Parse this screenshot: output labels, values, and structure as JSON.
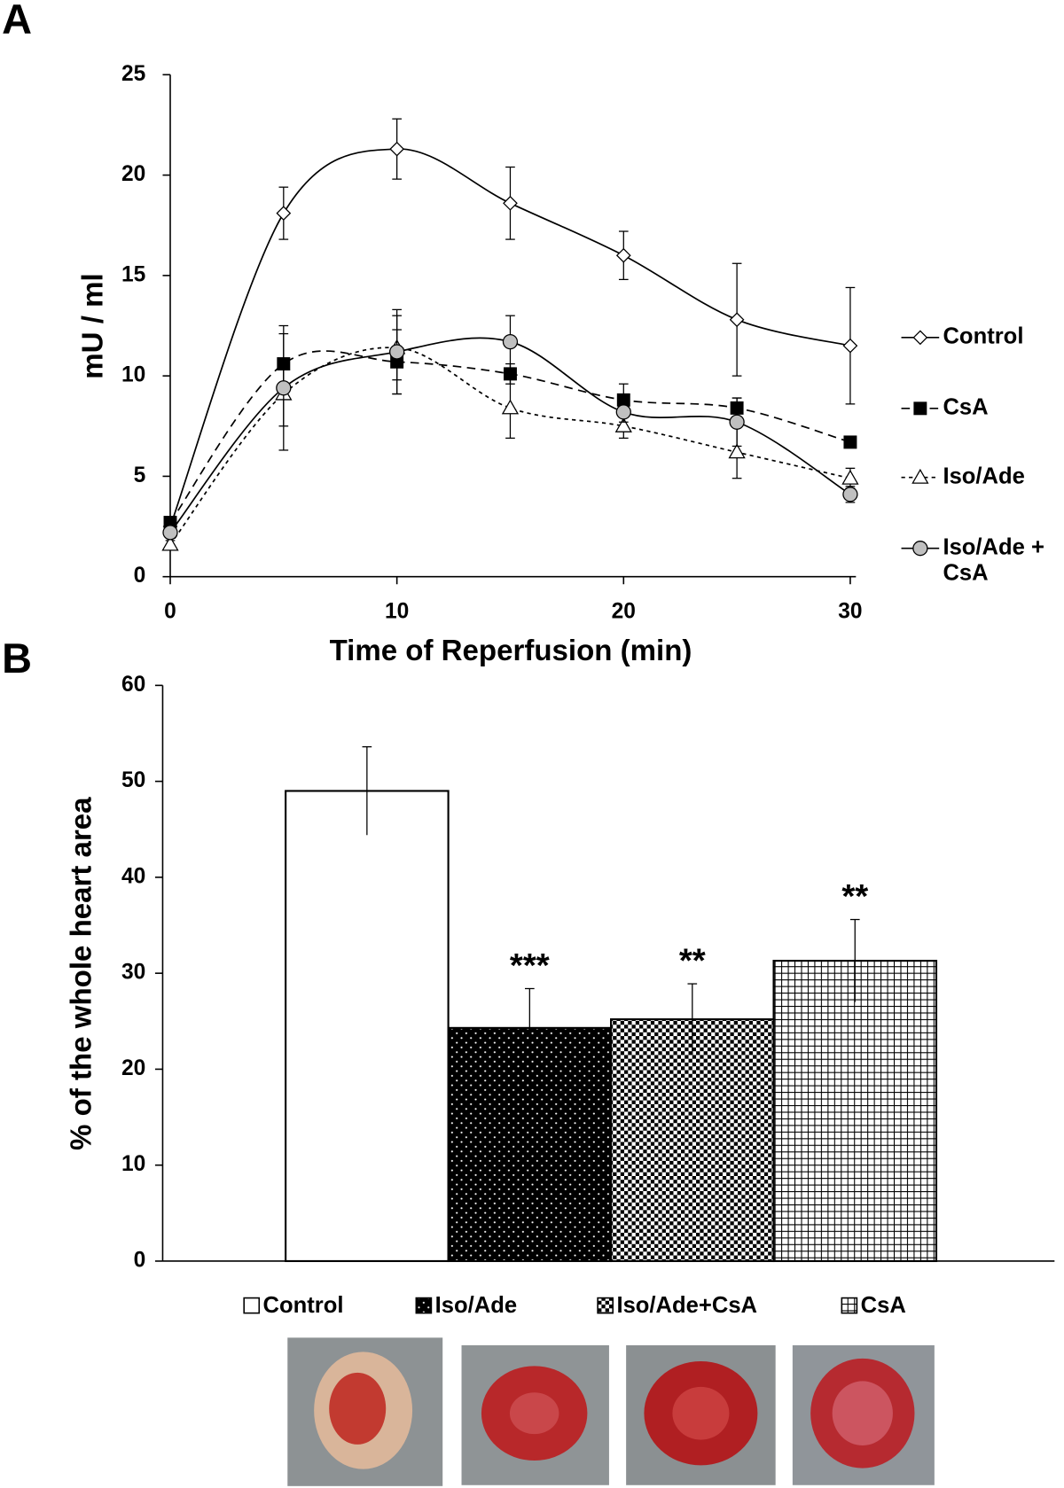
{
  "chart_data": [
    {
      "type": "line",
      "panel_label": "A",
      "x_label": "Time of Reperfusion (min)",
      "y_label": "mU / ml",
      "x": [
        0,
        5,
        10,
        15,
        20,
        25,
        30
      ],
      "xlim": [
        0,
        30
      ],
      "xticks": [
        0,
        10,
        20,
        30
      ],
      "ylim": [
        0,
        25
      ],
      "yticks": [
        0,
        5,
        10,
        15,
        20,
        25
      ],
      "series": [
        {
          "name": "Control",
          "color": "#000000",
          "marker": "diamond",
          "marker_fill": "#ffffff",
          "dash": "none",
          "values": [
            2.5,
            18.1,
            21.3,
            18.6,
            16.0,
            12.8,
            11.5
          ],
          "errors": [
            0.3,
            1.3,
            1.5,
            1.8,
            1.2,
            2.8,
            2.9
          ]
        },
        {
          "name": "CsA",
          "color": "#000000",
          "marker": "square",
          "marker_fill": "#000000",
          "dash": "9 6",
          "values": [
            2.7,
            10.6,
            10.7,
            10.1,
            8.8,
            8.4,
            6.7
          ],
          "errors": [
            0.2,
            1.5,
            1.6,
            0.5,
            0.8,
            0.5,
            0.2
          ]
        },
        {
          "name": "Iso/Ade",
          "color": "#000000",
          "marker": "triangle",
          "marker_fill": "#ffffff",
          "dash": "4 4",
          "values": [
            1.6,
            9.1,
            11.4,
            8.4,
            7.5,
            6.2,
            4.9
          ],
          "errors": [
            0.2,
            1.6,
            1.6,
            1.5,
            0.6,
            1.3,
            0.5
          ]
        },
        {
          "name": "Iso/Ade + CsA",
          "color": "#000000",
          "marker": "circle",
          "marker_fill": "#c0c0c0",
          "dash": "none",
          "values": [
            2.2,
            9.4,
            11.2,
            11.7,
            8.2,
            7.7,
            4.1
          ],
          "errors": [
            0.2,
            3.1,
            2.1,
            1.3,
            0.5,
            1.2,
            0.4
          ]
        }
      ]
    },
    {
      "type": "bar",
      "panel_label": "B",
      "y_label": "% of the whole heart area",
      "categories": [
        "Control",
        "Iso/Ade",
        "Iso/Ade+CsA",
        "CsA"
      ],
      "values": [
        49,
        24.3,
        25.2,
        31.3
      ],
      "errors": [
        4.6,
        4.1,
        3.7,
        4.3
      ],
      "significance": [
        null,
        "***",
        "**",
        "**"
      ],
      "patterns": [
        "none",
        "dots",
        "checker",
        "grid"
      ],
      "ylim": [
        0,
        60
      ],
      "yticks": [
        0,
        10,
        20,
        30,
        40,
        50,
        60
      ]
    }
  ]
}
